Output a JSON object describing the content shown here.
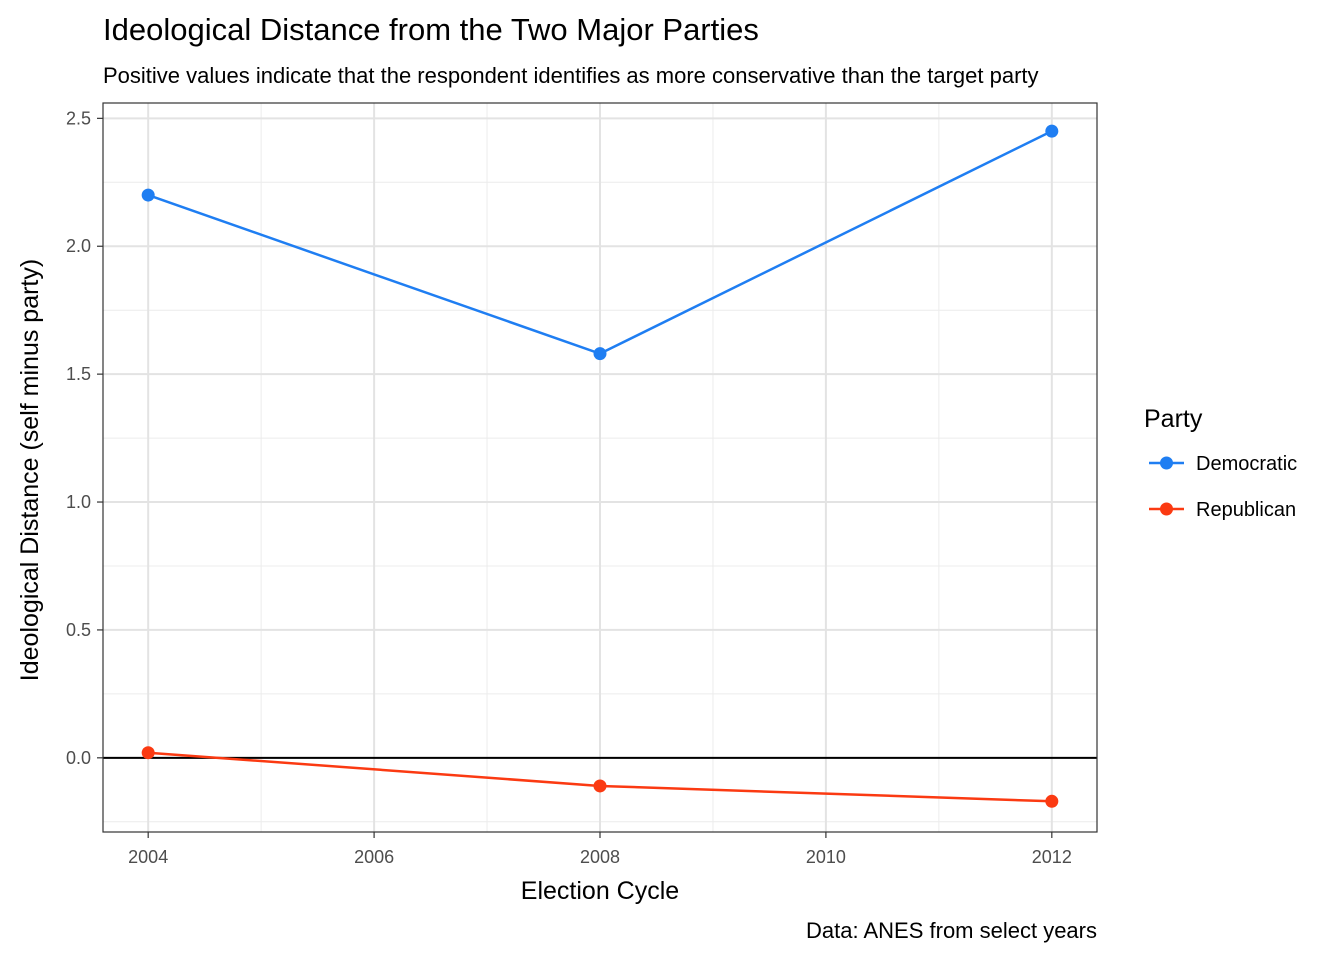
{
  "chart_data": {
    "type": "line",
    "title": "Ideological Distance from the Two Major Parties",
    "subtitle": "Positive values indicate that the respondent identifies as more conservative than the target party",
    "caption": "Data: ANES from select years",
    "xlabel": "Election Cycle",
    "ylabel": "Ideological Distance (self minus party)",
    "x": [
      2004,
      2008,
      2012
    ],
    "xlim": [
      2003.6,
      2012.4
    ],
    "ylim": [
      -0.29,
      2.56
    ],
    "xticks": [
      "2004",
      "2006",
      "2008",
      "2010",
      "2012"
    ],
    "xtick_values": [
      2004,
      2006,
      2008,
      2010,
      2012
    ],
    "yticks": [
      "0.0",
      "0.5",
      "1.0",
      "1.5",
      "2.0",
      "2.5"
    ],
    "ytick_values": [
      0.0,
      0.5,
      1.0,
      1.5,
      2.0,
      2.5
    ],
    "reference_line_y": 0,
    "grid": true,
    "legend_position": "right",
    "legend_title": "Party",
    "series": [
      {
        "name": "Democratic",
        "color": "#1f7ef2",
        "values": [
          2.2,
          1.58,
          2.45
        ]
      },
      {
        "name": "Republican",
        "color": "#fb3a12",
        "values": [
          0.02,
          -0.11,
          -0.17
        ]
      }
    ]
  }
}
